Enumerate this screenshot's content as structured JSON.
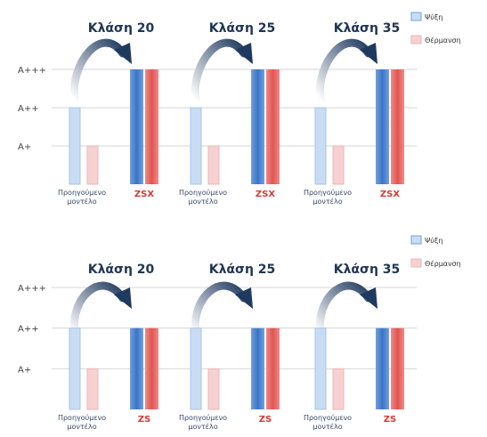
{
  "chart_data": [
    {
      "type": "bar",
      "y_ticks": [
        "A+",
        "A++",
        "A+++"
      ],
      "class_labels": [
        "Κλάση 20",
        "Κλάση 25",
        "Κλάση 35"
      ],
      "categories": [
        "Προηγούμενο μοντέλο",
        "ZSX",
        "Προηγούμενο μοντέλο",
        "ZSX",
        "Προηγούμενο μοντέλο",
        "ZSX"
      ],
      "series": [
        {
          "name": "Ψύξη",
          "values": [
            2,
            3,
            2,
            3,
            2,
            3
          ]
        },
        {
          "name": "Θέρμανση",
          "values": [
            1,
            3,
            1,
            3,
            1,
            3
          ]
        }
      ],
      "ylim": [
        0,
        3
      ],
      "legend_position": "top-right",
      "colors": {
        "cooling": "#3b74c4",
        "heating": "#e05552",
        "cooling_light": "#c8dcf3",
        "heating_light": "#f7d1d1"
      }
    },
    {
      "type": "bar",
      "y_ticks": [
        "A+",
        "A++",
        "A+++"
      ],
      "class_labels": [
        "Κλάση 20",
        "Κλάση 25",
        "Κλάση 35"
      ],
      "categories": [
        "Προηγούμενο μοντέλο",
        "ZS",
        "Προηγούμενο μοντέλο",
        "ZS",
        "Προηγούμενο μοντέλο",
        "ZS"
      ],
      "series": [
        {
          "name": "Ψύξη",
          "values": [
            2,
            2,
            2,
            2,
            2,
            2
          ]
        },
        {
          "name": "Θέρμανση",
          "values": [
            1,
            2,
            1,
            2,
            1,
            2
          ]
        }
      ],
      "ylim": [
        0,
        3
      ],
      "legend_position": "top-right",
      "colors": {
        "cooling": "#3b74c4",
        "heating": "#e05552",
        "cooling_light": "#c8dcf3",
        "heating_light": "#f7d1d1"
      }
    }
  ]
}
